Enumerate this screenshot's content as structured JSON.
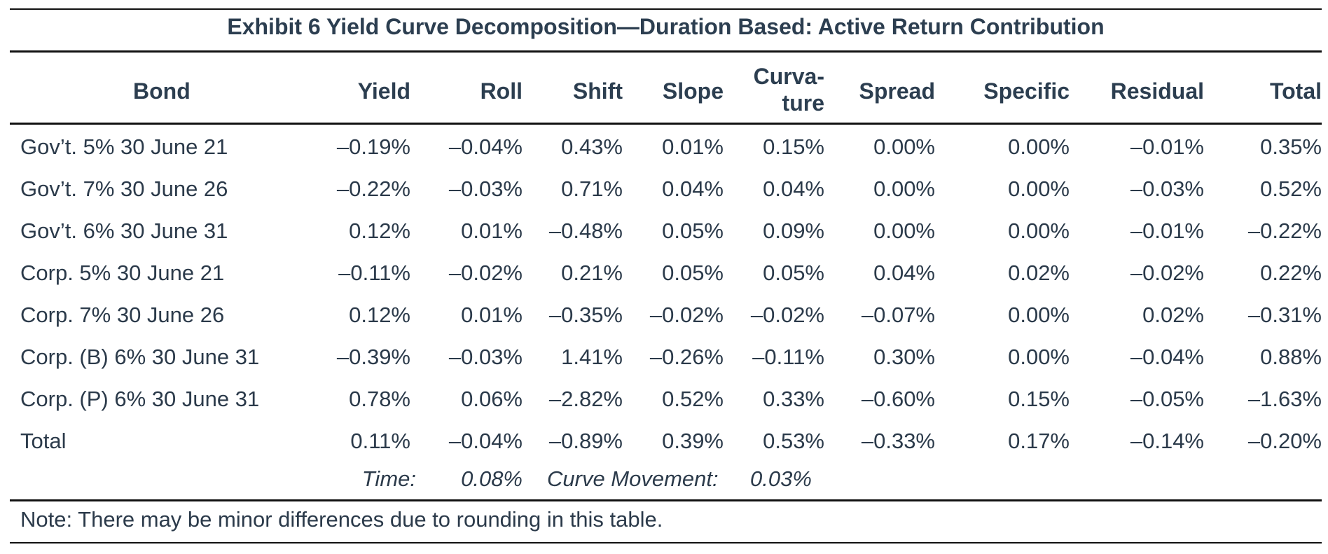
{
  "title": "Exhibit 6 Yield Curve Decomposition—Duration Based: Active Return Contribution",
  "columns": [
    {
      "key": "bond",
      "label": "Bond"
    },
    {
      "key": "yield",
      "label": "Yield"
    },
    {
      "key": "roll",
      "label": "Roll"
    },
    {
      "key": "shift",
      "label": "Shift"
    },
    {
      "key": "slope",
      "label": "Slope"
    },
    {
      "key": "curvature",
      "label_line1": "Curva-",
      "label_line2": "ture"
    },
    {
      "key": "spread",
      "label": "Spread"
    },
    {
      "key": "specific",
      "label": "Specific"
    },
    {
      "key": "residual",
      "label": "Residual"
    },
    {
      "key": "total",
      "label": "Total"
    }
  ],
  "rows": [
    [
      "Gov’t. 5% 30 June 21",
      "–0.19%",
      "–0.04%",
      "0.43%",
      "0.01%",
      "0.15%",
      "0.00%",
      "0.00%",
      "–0.01%",
      "0.35%"
    ],
    [
      "Gov’t. 7% 30 June 26",
      "–0.22%",
      "–0.03%",
      "0.71%",
      "0.04%",
      "0.04%",
      "0.00%",
      "0.00%",
      "–0.03%",
      "0.52%"
    ],
    [
      "Gov’t. 6% 30 June 31",
      "0.12%",
      "0.01%",
      "–0.48%",
      "0.05%",
      "0.09%",
      "0.00%",
      "0.00%",
      "–0.01%",
      "–0.22%"
    ],
    [
      "Corp. 5% 30 June 21",
      "–0.11%",
      "–0.02%",
      "0.21%",
      "0.05%",
      "0.05%",
      "0.04%",
      "0.02%",
      "–0.02%",
      "0.22%"
    ],
    [
      "Corp. 7% 30 June 26",
      "0.12%",
      "0.01%",
      "–0.35%",
      "–0.02%",
      "–0.02%",
      "–0.07%",
      "0.00%",
      "0.02%",
      "–0.31%"
    ],
    [
      "Corp. (B) 6% 30 June 31",
      "–0.39%",
      "–0.03%",
      "1.41%",
      "–0.26%",
      "–0.11%",
      "0.30%",
      "0.00%",
      "–0.04%",
      "0.88%"
    ],
    [
      "Corp. (P) 6% 30 June 31",
      "0.78%",
      "0.06%",
      "–2.82%",
      "0.52%",
      "0.33%",
      "–0.60%",
      "0.15%",
      "–0.05%",
      "–1.63%"
    ],
    [
      "Total",
      "0.11%",
      "–0.04%",
      "–0.89%",
      "0.39%",
      "0.53%",
      "–0.33%",
      "0.17%",
      "–0.14%",
      "–0.20%"
    ]
  ],
  "summary": {
    "time_label": "Time:",
    "time_value": "0.08%",
    "curve_label": "Curve Movement:",
    "curve_value": "0.03%"
  },
  "note": "Note: There may be minor differences due to rounding in this table."
}
